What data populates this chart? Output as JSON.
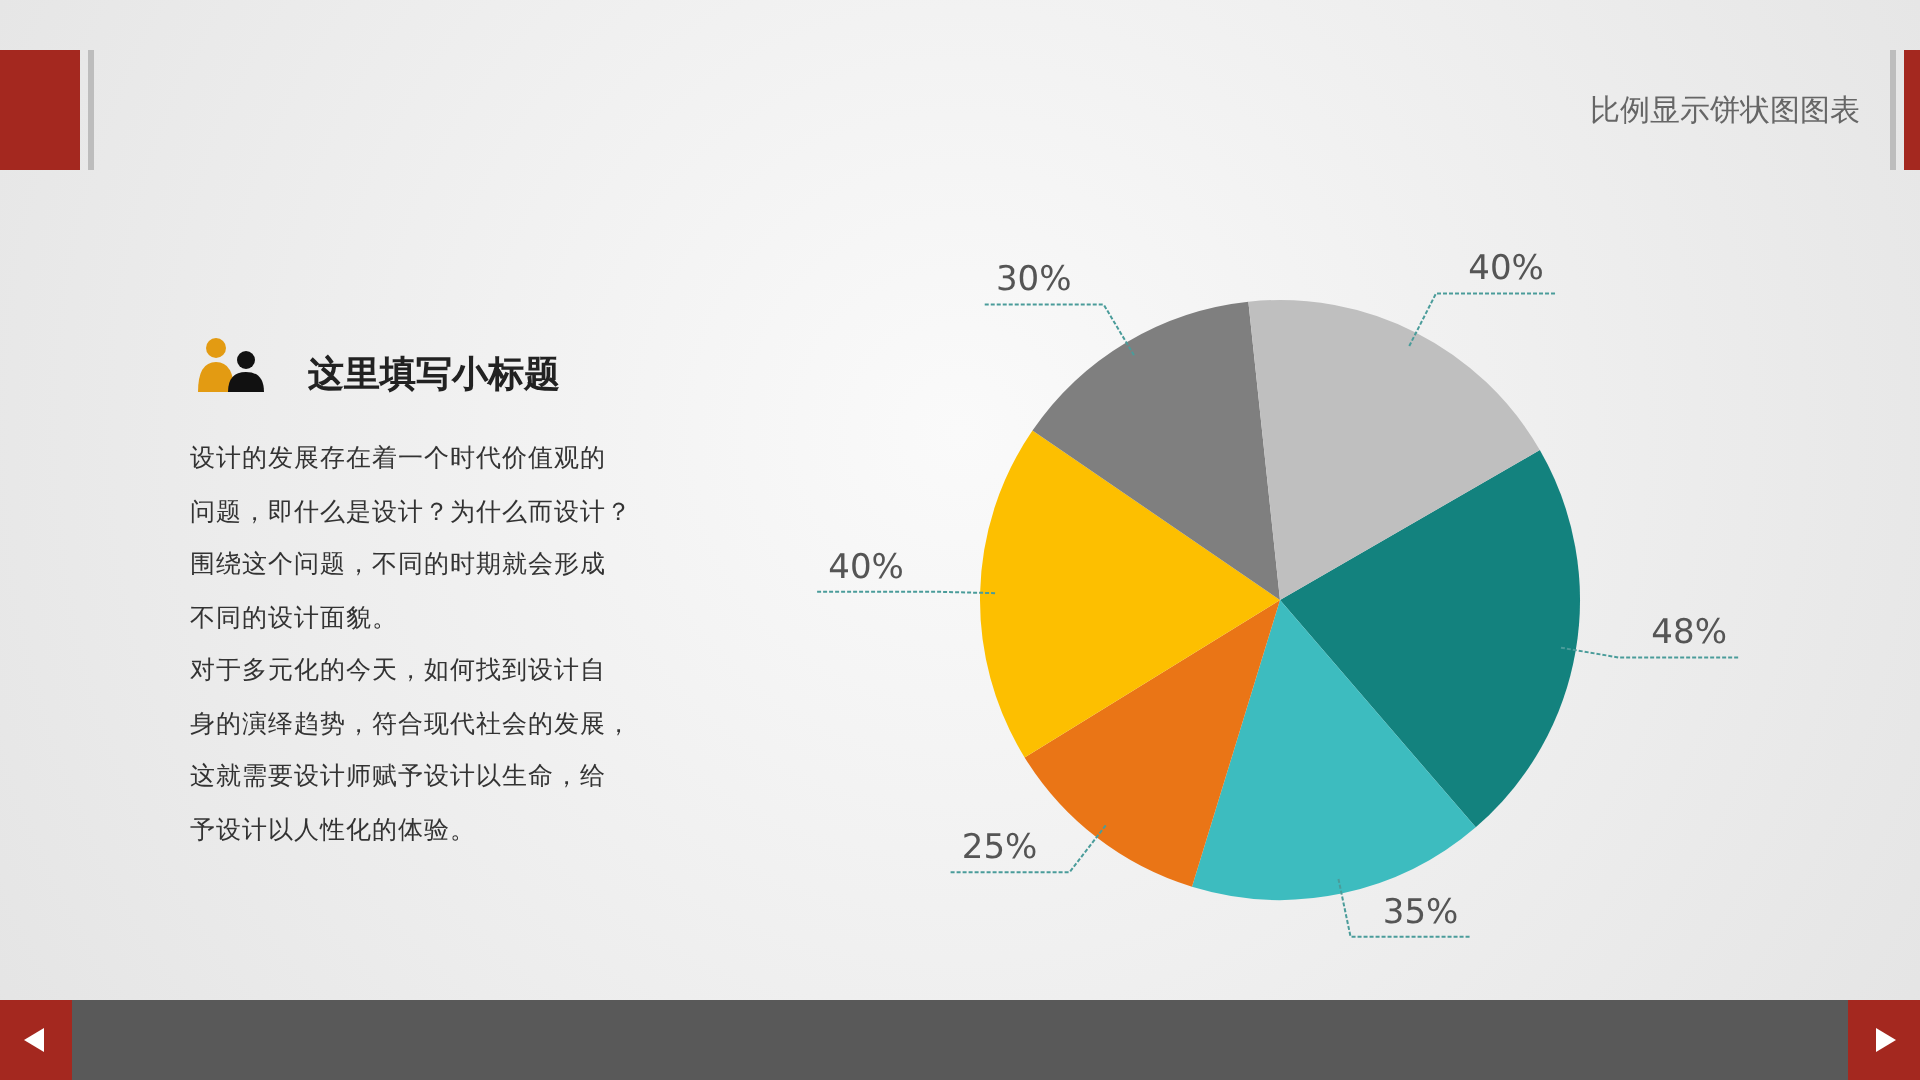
{
  "chart_data": {
    "type": "pie",
    "title": "比例显示饼状图图表",
    "subtitle": "这里填写小标题",
    "annotations": [
      "设计的发展存在着一个时代价值观的",
      "问题，即什么是设计？为什么而设计？",
      "围绕这个问题，不同的时期就会形成",
      "不同的设计面貌。",
      "对于多元化的今天，如何找到设计自",
      "身的演绎趋势，符合现代社会的发展，",
      "这就需要设计师赋予设计以生命，给",
      "予设计以人性化的体验。"
    ],
    "categories": [
      null,
      null,
      null,
      null,
      null,
      null
    ],
    "values": [
      48,
      35,
      25,
      40,
      30,
      40
    ],
    "colors": [
      "#13827e",
      "#3dbcbf",
      "#ea7516",
      "#fdbf00",
      "#7f7f7f",
      "#bfbfbf"
    ],
    "value_labels": [
      "48%",
      "35%",
      "25%",
      "40%",
      "30%",
      "40%"
    ],
    "legend": false
  }
}
